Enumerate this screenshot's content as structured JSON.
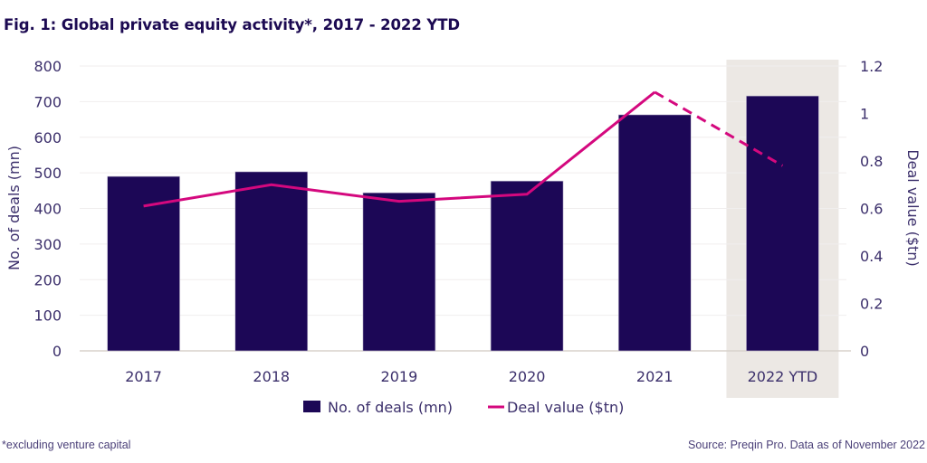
{
  "title": "Fig. 1: Global private equity activity*, 2017 - 2022 YTD",
  "footnote": "*excluding venture capital",
  "source": "Source: Preqin Pro. Data as of November 2022",
  "colors": {
    "bar": "#1c0756",
    "line": "#d4087e",
    "highlight": "#ece8e4",
    "gridline": "#f0eeee",
    "baseline": "#d8d2cc",
    "text": "#3b2f6b"
  },
  "chart_data": {
    "type": "bar",
    "title": "Fig. 1: Global private equity activity*, 2017 - 2022 YTD",
    "categories": [
      "2017",
      "2018",
      "2019",
      "2020",
      "2021",
      "2022 YTD"
    ],
    "highlighted_category": "2022 YTD",
    "series": [
      {
        "name": "No. of deals (mn)",
        "type": "bar",
        "axis": "left",
        "values": [
          490,
          503,
          444,
          477,
          663,
          716
        ]
      },
      {
        "name": "Deal value ($tn)",
        "type": "line",
        "axis": "right",
        "values": [
          0.61,
          0.7,
          0.63,
          0.66,
          1.09,
          0.78
        ],
        "dashed_last_segment": true
      }
    ],
    "left_axis": {
      "label": "No. of deals (mn)",
      "ylim": [
        0,
        800
      ],
      "ticks": [
        "0",
        "100",
        "200",
        "300",
        "400",
        "500",
        "600",
        "700",
        "800"
      ],
      "tick_values": [
        0,
        100,
        200,
        300,
        400,
        500,
        600,
        700,
        800
      ]
    },
    "right_axis": {
      "label": "Deal value ($tn)",
      "ylim": [
        0,
        1.2
      ],
      "ticks": [
        "0",
        "0.2",
        "0.4",
        "0.6",
        "0.8",
        "1",
        "1.2"
      ],
      "tick_values": [
        0,
        0.2,
        0.4,
        0.6,
        0.8,
        1,
        1.2
      ]
    },
    "grid": true,
    "legend": {
      "position": "bottom",
      "entries": [
        "No. of deals (mn)",
        "Deal value ($tn)"
      ]
    }
  }
}
